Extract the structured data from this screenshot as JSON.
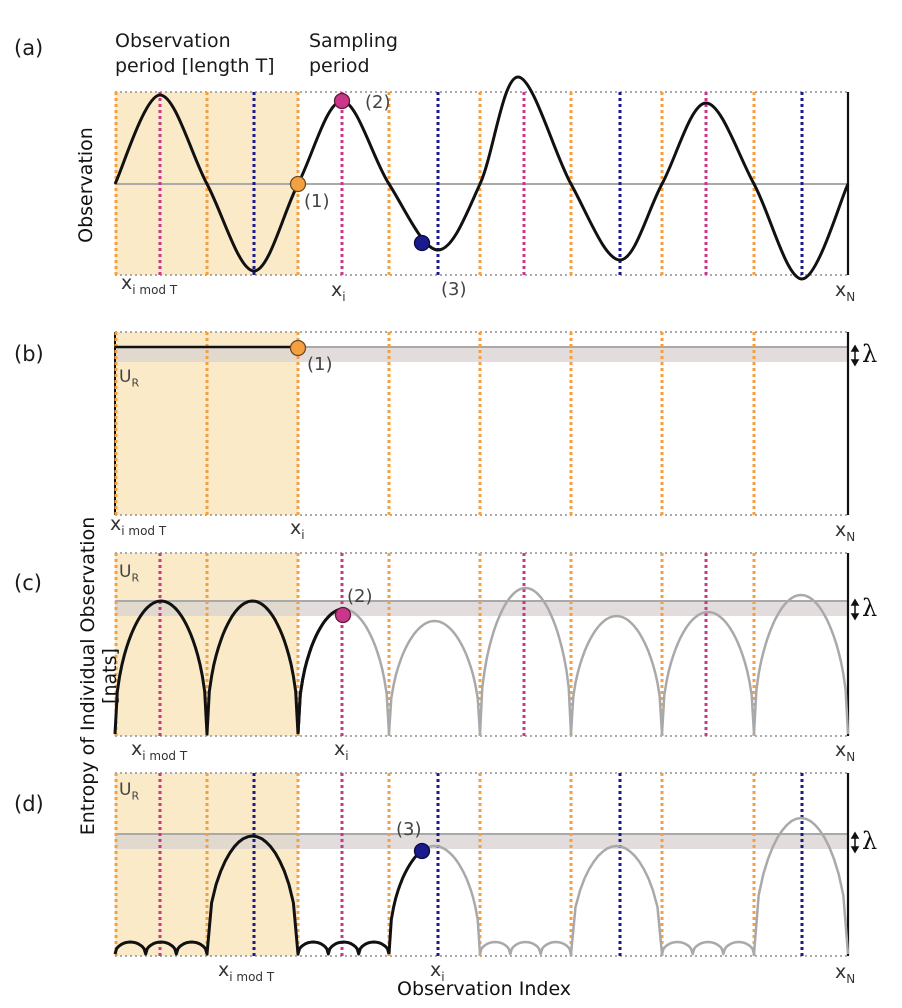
{
  "panels": {
    "a": {
      "letter": "(a)"
    },
    "b": {
      "letter": "(b)"
    },
    "c": {
      "letter": "(c)"
    },
    "d": {
      "letter": "(d)"
    }
  },
  "headers": {
    "observation_period_line1": "Observation",
    "observation_period_line2": "period [length  T]",
    "sampling_period_line1": "Sampling",
    "sampling_period_line2": "period"
  },
  "axes": {
    "y_top": "Observation",
    "y_bottom": "Entropy of Individual Observation [nats]",
    "x_bottom": "Observation Index"
  },
  "x_labels": {
    "x_main": "x",
    "sub_i_mod_T": "i mod T",
    "sub_i": "i",
    "sub_N": "N"
  },
  "points": {
    "p1": "(1)",
    "p2": "(2)",
    "p3": "(3)"
  },
  "ur": {
    "main": "U",
    "sub": "R"
  },
  "lambda": "λ",
  "colors": {
    "period_fill": "#faeac7",
    "orange": "#f5a040",
    "magenta": "#c8378a",
    "navy": "#1a1a8c",
    "band": "#e3dedd",
    "gray_line": "#a9a9a9",
    "dotted_border": "#aaaaaa"
  }
}
